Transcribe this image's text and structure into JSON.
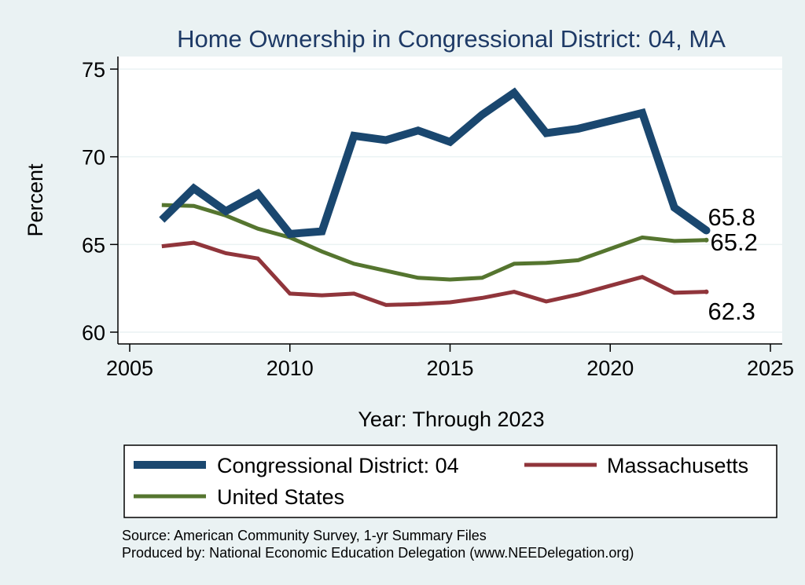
{
  "chart_data": {
    "type": "line",
    "title": "Home Ownership in Congressional District:  04, MA",
    "xlabel": "Year: Through 2023",
    "ylabel": "Percent",
    "xlim": [
      2005,
      2025
    ],
    "ylim": [
      60,
      75
    ],
    "xticks": [
      2005,
      2010,
      2015,
      2020,
      2025
    ],
    "yticks": [
      60,
      65,
      70,
      75
    ],
    "grid": true,
    "legend_position": "bottom",
    "x": [
      2006,
      2007,
      2008,
      2009,
      2010,
      2011,
      2012,
      2013,
      2014,
      2015,
      2016,
      2017,
      2018,
      2019,
      2020,
      2021,
      2022,
      2023
    ],
    "series": [
      {
        "name": "Congressional District:  04",
        "color": "#1a476f",
        "values": [
          66.4,
          68.2,
          66.9,
          67.9,
          65.6,
          65.75,
          71.2,
          70.95,
          71.5,
          70.85,
          72.4,
          73.65,
          71.35,
          71.6,
          72.05,
          72.5,
          67.1,
          65.8
        ],
        "end_label": "65.8"
      },
      {
        "name": "Massachusetts",
        "color": "#90353b",
        "values": [
          64.9,
          65.1,
          64.5,
          64.2,
          62.2,
          62.1,
          62.2,
          61.55,
          61.6,
          61.7,
          61.95,
          62.3,
          61.75,
          62.15,
          62.65,
          63.15,
          62.25,
          62.3
        ],
        "end_label": "62.3"
      },
      {
        "name": "United States",
        "color": "#55752f",
        "values": [
          67.25,
          67.2,
          66.65,
          65.9,
          65.4,
          64.6,
          63.9,
          63.5,
          63.1,
          63.0,
          63.1,
          63.9,
          63.95,
          64.1,
          64.75,
          65.4,
          65.2,
          65.25
        ],
        "end_label": "65.2"
      }
    ],
    "source": "Source: American Community Survey, 1-yr Summary Files",
    "producer": "Produced by: National Economic Education Delegation (www.NEEDelegation.org)"
  }
}
